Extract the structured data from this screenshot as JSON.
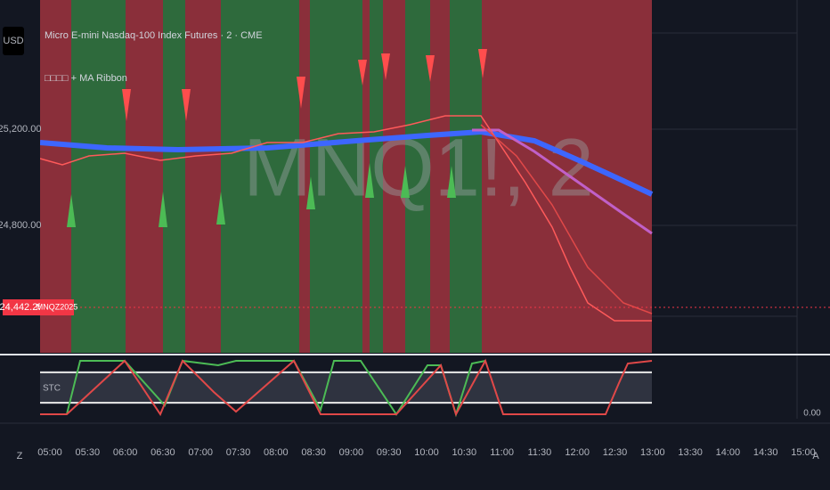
{
  "header": {
    "symbol": "Micro E-mini Nasdaq-100 Index Futures · 2 · CME",
    "indicator": "□□□□ + MA Ribbon",
    "currency": "USD",
    "watermark": "MNQ1!, 2"
  },
  "price_axis": {
    "labels": [
      "25,200.00",
      "24,800.00"
    ],
    "last_price": "24,442.25",
    "contract": "MNQZ2025"
  },
  "oscillator": {
    "label": "STC",
    "scale_label": "0.00"
  },
  "time_axis": {
    "labels": [
      "05:00",
      "05:30",
      "06:00",
      "06:30",
      "07:00",
      "07:30",
      "08:00",
      "08:30",
      "09:00",
      "09:30",
      "10:00",
      "10:30",
      "11:00",
      "11:30",
      "12:00",
      "12:30",
      "13:00",
      "13:30",
      "14:00",
      "14:30",
      "15:00"
    ]
  },
  "toolbar": {
    "left": "Z",
    "right": "A"
  }
}
